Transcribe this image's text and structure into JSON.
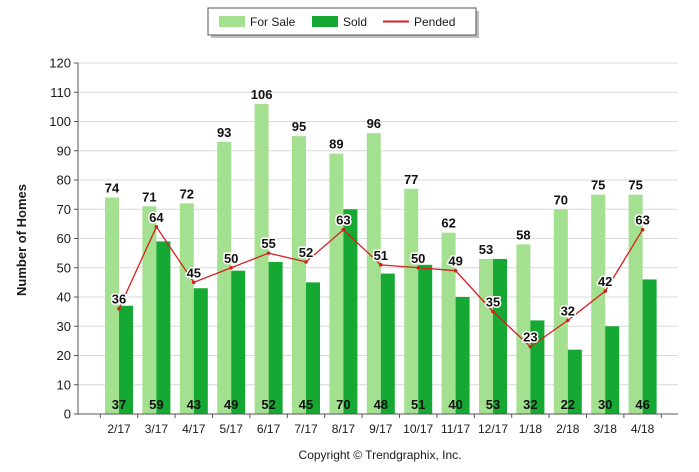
{
  "chart_data": {
    "type": "bar",
    "title": "",
    "xlabel": "",
    "ylabel": "Number of Homes",
    "ylim": [
      0,
      120
    ],
    "yticks": [
      0,
      10,
      20,
      30,
      40,
      50,
      60,
      70,
      80,
      90,
      100,
      110,
      120
    ],
    "grid": true,
    "legend_position": "top-center",
    "categories": [
      "2/17",
      "3/17",
      "4/17",
      "5/17",
      "6/17",
      "7/17",
      "8/17",
      "9/17",
      "10/17",
      "11/17",
      "12/17",
      "1/18",
      "2/18",
      "3/18",
      "4/18"
    ],
    "series": [
      {
        "name": "For Sale",
        "kind": "bar",
        "color": "#a3e08f",
        "values": [
          74,
          71,
          72,
          93,
          106,
          95,
          89,
          96,
          77,
          62,
          53,
          58,
          70,
          75,
          75
        ]
      },
      {
        "name": "Sold",
        "kind": "bar",
        "color": "#15a832",
        "values": [
          37,
          59,
          43,
          49,
          52,
          45,
          70,
          48,
          51,
          40,
          53,
          32,
          22,
          30,
          46
        ]
      },
      {
        "name": "Pended",
        "kind": "line",
        "color": "#d62020",
        "values": [
          36,
          64,
          45,
          50,
          55,
          52,
          63,
          51,
          50,
          49,
          35,
          23,
          32,
          42,
          63
        ]
      }
    ]
  },
  "footer": {
    "copyright": "Copyright © Trendgraphix, Inc."
  }
}
